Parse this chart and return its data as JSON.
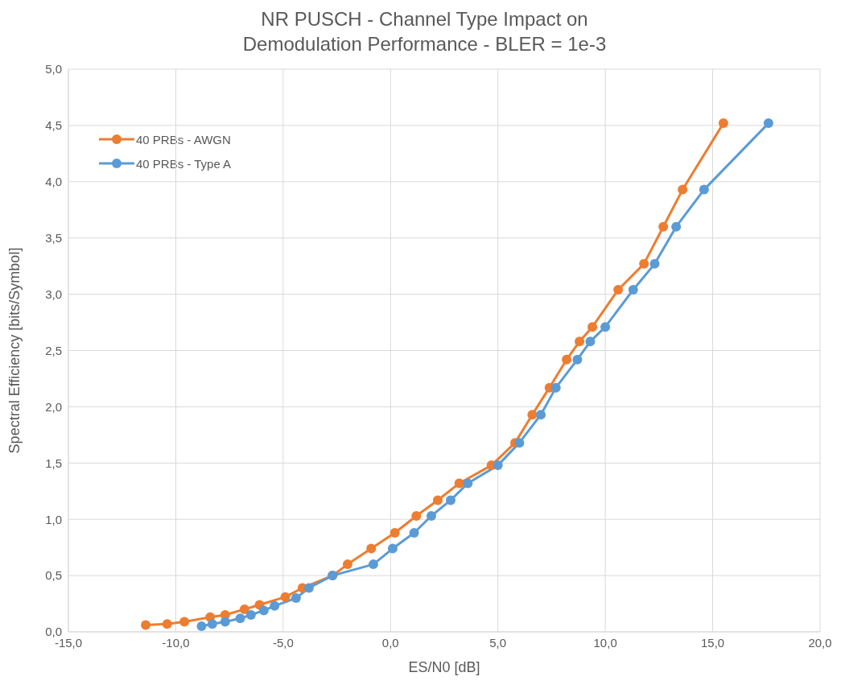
{
  "chart_data": {
    "type": "line",
    "title": "NR PUSCH - Channel Type Impact on Demodulation Performance - BLER = 1e-3",
    "xlabel": "ES/N0 [dB]",
    "ylabel": "Spectral Efficiency [bits/Symbol]",
    "xlim": [
      -15,
      20
    ],
    "xticks": [
      {
        "value": -15,
        "label": "-15,0"
      },
      {
        "value": -10,
        "label": "-10,0"
      },
      {
        "value": -5,
        "label": "-5,0"
      },
      {
        "value": 0,
        "label": "0,0"
      },
      {
        "value": 5,
        "label": "5,0"
      },
      {
        "value": 10,
        "label": "10,0"
      },
      {
        "value": 15,
        "label": "15,0"
      },
      {
        "value": 20,
        "label": "20,0"
      }
    ],
    "ylim": [
      0,
      5
    ],
    "yticks": [
      {
        "value": 0,
        "label": "0,0"
      },
      {
        "value": 0.5,
        "label": "0,5"
      },
      {
        "value": 1,
        "label": "1,0"
      },
      {
        "value": 1.5,
        "label": "1,5"
      },
      {
        "value": 2,
        "label": "2,0"
      },
      {
        "value": 2.5,
        "label": "2,5"
      },
      {
        "value": 3,
        "label": "3,0"
      },
      {
        "value": 3.5,
        "label": "3,5"
      },
      {
        "value": 4,
        "label": "4,0"
      },
      {
        "value": 4.5,
        "label": "4,5"
      },
      {
        "value": 5,
        "label": "5,0"
      }
    ],
    "grid": true,
    "legend": "top left",
    "marker": "circle",
    "line_style": "solid",
    "series": [
      {
        "name": "40 PRBs - AWGN",
        "color": "#ed7d31",
        "x": [
          -11.4,
          -10.4,
          -9.6,
          -8.4,
          -7.7,
          -6.8,
          -6.1,
          -4.9,
          -4.1,
          -2.7,
          -2.0,
          -0.9,
          0.2,
          1.2,
          2.2,
          3.2,
          4.7,
          5.8,
          6.6,
          7.4,
          8.2,
          8.8,
          9.4,
          10.6,
          11.8,
          12.7,
          13.6,
          15.5
        ],
        "values": [
          0.06,
          0.07,
          0.09,
          0.13,
          0.15,
          0.2,
          0.24,
          0.31,
          0.39,
          0.5,
          0.6,
          0.74,
          0.88,
          1.03,
          1.17,
          1.32,
          1.48,
          1.68,
          1.93,
          2.17,
          2.42,
          2.58,
          2.71,
          3.04,
          3.27,
          3.6,
          3.93,
          4.52
        ]
      },
      {
        "name": "40 PRBs - Type A",
        "color": "#5b9bd5",
        "x": [
          -8.8,
          -8.3,
          -7.7,
          -7.0,
          -6.5,
          -5.9,
          -5.4,
          -4.4,
          -3.8,
          -2.7,
          -0.8,
          0.1,
          1.1,
          1.9,
          2.8,
          3.6,
          5.0,
          6.0,
          7.0,
          7.7,
          8.7,
          9.3,
          10.0,
          11.3,
          12.3,
          13.3,
          14.6,
          17.6
        ],
        "values": [
          0.05,
          0.07,
          0.09,
          0.12,
          0.15,
          0.19,
          0.23,
          0.3,
          0.39,
          0.5,
          0.6,
          0.74,
          0.88,
          1.03,
          1.17,
          1.32,
          1.48,
          1.68,
          1.93,
          2.17,
          2.42,
          2.58,
          2.71,
          3.04,
          3.27,
          3.6,
          3.93,
          4.52
        ]
      }
    ]
  }
}
